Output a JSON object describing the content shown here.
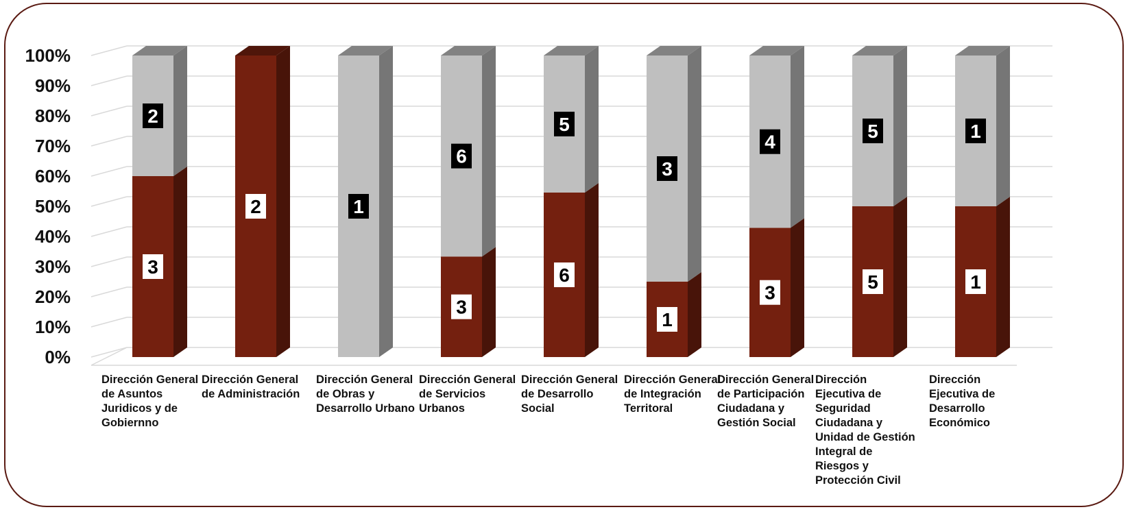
{
  "chart_data": {
    "type": "bar",
    "stacked": true,
    "percent_stacked": true,
    "style_3d": true,
    "categories": [
      "Dirección General de Asuntos Juridicos y de Gobiernno",
      "Dirección General de Administración",
      "Dirección General de Obras y Desarrollo Urbano",
      "Dirección General de Servicios Urbanos",
      "Dirección General de Desarrollo Social",
      "Dirección General de Integración Territoral",
      "Dirección General de Participación Ciudadana y Gestión Social",
      "Dirección Ejecutiva de Seguridad Ciudadana y Unidad de Gestión Integral de Riesgos y Protección Civil",
      "Dirección Ejecutiva de Desarrollo Económico"
    ],
    "series": [
      {
        "values": [
          3,
          2,
          0,
          3,
          6,
          1,
          3,
          5,
          1
        ],
        "color": "#74200f",
        "label_style": "white-box"
      },
      {
        "values": [
          2,
          0,
          1,
          6,
          5,
          3,
          4,
          5,
          1
        ],
        "color": "#bfbfbf",
        "label_style": "black-box"
      }
    ],
    "y_tick_labels": [
      "0%",
      "10%",
      "20%",
      "30%",
      "40%",
      "50%",
      "60%",
      "70%",
      "80%",
      "90%",
      "100%"
    ],
    "ylim": [
      0,
      100
    ],
    "grid": true,
    "legend": "none"
  }
}
